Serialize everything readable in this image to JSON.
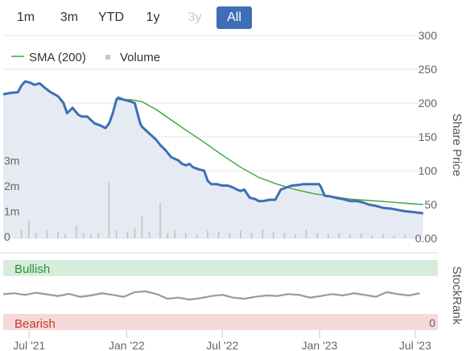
{
  "range_selector": {
    "buttons": [
      {
        "label": "1m",
        "state": "normal"
      },
      {
        "label": "3m",
        "state": "normal"
      },
      {
        "label": "YTD",
        "state": "normal"
      },
      {
        "label": "1y",
        "state": "normal"
      },
      {
        "label": "3y",
        "state": "disabled"
      },
      {
        "label": "All",
        "state": "active"
      }
    ]
  },
  "colors": {
    "price_line": "#3d6fb6",
    "price_area": "#e6ebf3",
    "sma_line": "#3aa53a",
    "volume_bar": "#c8c8c8",
    "bullish_band": "#d6eddb",
    "bullish_text": "#2e8b3e",
    "bearish_band": "#f6d9da",
    "bearish_text": "#c0392b",
    "stockrank_line": "#999999",
    "grid": "#e6e6e6"
  },
  "legend": {
    "sma_label": "SMA (200)",
    "volume_label": "Volume"
  },
  "stockrank_panel": {
    "title": "StockRank",
    "bullish_label": "Bullish",
    "bearish_label": "Bearish",
    "zero_label": "0"
  },
  "chart_data": [
    {
      "type": "line",
      "title": "",
      "ylabel": "Share Price",
      "ylim": [
        0,
        300
      ],
      "yticks": [
        "0.00",
        "50",
        "100",
        "150",
        "200",
        "250",
        "300"
      ],
      "volume_ticks": [
        "0",
        "1m",
        "2m",
        "3m"
      ],
      "volume_ylim": [
        0,
        3.5
      ],
      "xticks": [
        {
          "label": "Jul '21",
          "t": 0.071
        },
        {
          "label": "Jan '22",
          "t": 0.338
        },
        {
          "label": "Jul '22",
          "t": 0.6
        },
        {
          "label": "Jan '23",
          "t": 0.866
        },
        {
          "label": "Jul '23",
          "t": 1.128
        }
      ],
      "x_domain": [
        0,
        1.19
      ],
      "series": [
        {
          "name": "",
          "kind": "price",
          "t": [
            0,
            0.02,
            0.04,
            0.05,
            0.06,
            0.075,
            0.085,
            0.1,
            0.115,
            0.13,
            0.15,
            0.165,
            0.175,
            0.19,
            0.205,
            0.215,
            0.23,
            0.25,
            0.265,
            0.28,
            0.29,
            0.3,
            0.31,
            0.315,
            0.32,
            0.33,
            0.345,
            0.36,
            0.37,
            0.375,
            0.38,
            0.39,
            0.4,
            0.41,
            0.42,
            0.43,
            0.445,
            0.46,
            0.48,
            0.49,
            0.5,
            0.51,
            0.52,
            0.535,
            0.55,
            0.56,
            0.57,
            0.585,
            0.6,
            0.615,
            0.63,
            0.64,
            0.65,
            0.66,
            0.675,
            0.69,
            0.7,
            0.71,
            0.72,
            0.73,
            0.745,
            0.76,
            0.775,
            0.79,
            0.81,
            0.82,
            0.835,
            0.85,
            0.865,
            0.87,
            0.88,
            0.895,
            0.91,
            0.93,
            0.95,
            0.97,
            0.985,
            1.0,
            1.02,
            1.04,
            1.06,
            1.08,
            1.1,
            1.12,
            1.135,
            1.15
          ],
          "values": [
            213,
            215,
            216,
            226,
            232,
            230,
            227,
            229,
            222,
            216,
            210,
            200,
            185,
            193,
            183,
            180,
            180,
            170,
            167,
            163,
            170,
            185,
            205,
            208,
            207,
            205,
            203,
            200,
            180,
            170,
            165,
            160,
            155,
            150,
            145,
            138,
            130,
            120,
            115,
            110,
            108,
            110,
            105,
            102,
            100,
            85,
            80,
            80,
            78,
            78,
            75,
            72,
            70,
            72,
            60,
            58,
            55,
            55,
            56,
            57,
            57,
            72,
            75,
            78,
            79,
            80,
            80,
            80,
            80,
            76,
            63,
            62,
            60,
            58,
            55,
            55,
            53,
            50,
            48,
            45,
            44,
            42,
            40,
            39,
            38,
            37
          ]
        },
        {
          "name": "SMA (200)",
          "kind": "sma",
          "t": [
            0.315,
            0.35,
            0.38,
            0.42,
            0.46,
            0.5,
            0.55,
            0.6,
            0.65,
            0.7,
            0.75,
            0.8,
            0.85,
            0.9,
            0.95,
            1.0,
            1.05,
            1.1,
            1.15
          ],
          "values": [
            205,
            205,
            202,
            190,
            175,
            160,
            142,
            123,
            105,
            90,
            80,
            72,
            66,
            62,
            58,
            56,
            54,
            52,
            50
          ]
        },
        {
          "name": "Volume",
          "kind": "volume",
          "t": [
            0.05,
            0.07,
            0.09,
            0.12,
            0.15,
            0.17,
            0.2,
            0.22,
            0.24,
            0.26,
            0.29,
            0.31,
            0.34,
            0.36,
            0.38,
            0.4,
            0.43,
            0.45,
            0.47,
            0.5,
            0.53,
            0.56,
            0.59,
            0.62,
            0.65,
            0.68,
            0.71,
            0.74,
            0.77,
            0.8,
            0.83,
            0.86,
            0.89,
            0.92,
            0.95,
            0.98,
            1.01,
            1.04,
            1.07,
            1.1,
            1.13
          ],
          "values": [
            0.35,
            0.7,
            0.2,
            0.3,
            0.25,
            0.15,
            0.5,
            0.2,
            0.15,
            0.2,
            2.2,
            0.3,
            0.25,
            0.4,
            0.9,
            0.25,
            1.4,
            0.2,
            0.3,
            0.2,
            0.15,
            0.3,
            0.25,
            0.2,
            0.3,
            0.2,
            0.35,
            0.25,
            0.2,
            0.15,
            0.35,
            0.2,
            0.15,
            0.2,
            0.15,
            0.2,
            0.1,
            0.15,
            0.1,
            0.15,
            0.1
          ]
        }
      ]
    },
    {
      "type": "line",
      "title": "StockRank",
      "ylim": [
        0,
        100
      ],
      "series": [
        {
          "name": "",
          "t": [
            0,
            0.03,
            0.06,
            0.09,
            0.12,
            0.15,
            0.18,
            0.21,
            0.24,
            0.27,
            0.3,
            0.33,
            0.36,
            0.39,
            0.42,
            0.45,
            0.48,
            0.51,
            0.54,
            0.57,
            0.6,
            0.63,
            0.66,
            0.69,
            0.72,
            0.75,
            0.78,
            0.81,
            0.84,
            0.87,
            0.9,
            0.93,
            0.96,
            0.99,
            1.02,
            1.05,
            1.08,
            1.11,
            1.14
          ],
          "values": [
            55,
            58,
            52,
            60,
            54,
            48,
            56,
            45,
            50,
            58,
            52,
            45,
            62,
            65,
            55,
            38,
            42,
            35,
            40,
            48,
            52,
            42,
            38,
            45,
            50,
            48,
            55,
            52,
            42,
            48,
            55,
            50,
            58,
            52,
            45,
            62,
            55,
            50,
            58
          ]
        }
      ]
    }
  ]
}
